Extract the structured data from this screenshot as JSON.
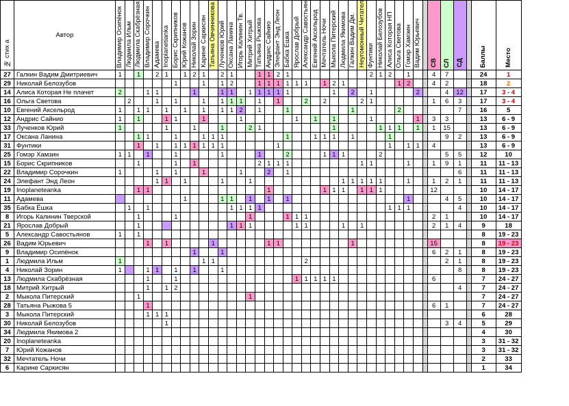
{
  "header": {
    "num": "№ стих а",
    "author": "Автор",
    "voters": [
      "Владимир Осипёнок",
      "Людмила Ильм",
      "Людмила Скабрёзная",
      "Владимир Сорочкин",
      "Адамева",
      "Inoplanetianka",
      "Борис Скрипников",
      "Юрий Кожанов",
      "Николай Зорин",
      "Карине Саркисян",
      "Татьяна Овчинникова",
      "Лученков Юрий",
      "Оксана Ланина",
      "Игорь Калинин Тв.",
      "Митрий Хитрый",
      "Татьяна Рыжова",
      "Андрис Сайнио",
      "Элефант Энд Леон",
      "Бабка Ёшка",
      "Ярослав Добрый",
      "Александр Савостьянов",
      "Евгений Аксельрод",
      "Мечтатель Ночи",
      "Мыкола Питерский",
      "Людмила Якимова",
      "Галкин Вадим Дм.",
      "Неугомонный Читатель",
      "Фунтики",
      "Николай Белозубов",
      "Алиса Которая НП",
      "Ольга Светова",
      "Гомэр Хамэин",
      "Вадим Юрьевич"
    ],
    "sv": "СВ",
    "sl": "СЛ",
    "sd": "СД",
    "total": "Баллы",
    "place": "Место"
  },
  "rows": [
    {
      "num": "27",
      "name": "Галкин Вадим Дмитриевич",
      "sv": "4",
      "sl": "7",
      "sd": "",
      "total": "24",
      "place": "1"
    },
    {
      "num": "29",
      "name": "Николай Белозубов",
      "sv": "4",
      "sl": "2",
      "sd": "",
      "total": "18",
      "place": "2"
    },
    {
      "num": "14",
      "name": "Алиса Которая Не плачет",
      "sv": "",
      "sl": "4",
      "sd": "12",
      "total": "17",
      "place": "3 - 4"
    },
    {
      "num": "16",
      "name": "Ольга Светова",
      "sv": "1",
      "sl": "6",
      "sd": "3",
      "total": "17",
      "place": "3 - 4"
    },
    {
      "num": "10",
      "name": "Евгений Аксельрод",
      "sv": "",
      "sl": "",
      "sd": "7",
      "total": "16",
      "place": "5"
    },
    {
      "num": "12",
      "name": "Андрис Сайнио",
      "sv": "3",
      "sl": "3",
      "sd": "",
      "total": "13",
      "place": "6 - 9"
    },
    {
      "num": "33",
      "name": "Лученков Юрий",
      "sv": "1",
      "sl": "15",
      "sd": "",
      "total": "13",
      "place": "6 - 9"
    },
    {
      "num": "17",
      "name": "Оксана Ланина",
      "sv": "",
      "sl": "9",
      "sd": "2",
      "total": "13",
      "place": "6 - 9"
    },
    {
      "num": "31",
      "name": "Фунтики",
      "sv": "4",
      "sl": "",
      "sd": "",
      "total": "13",
      "place": "6 - 9"
    },
    {
      "num": "25",
      "name": "Гомэр Хамзин",
      "sv": "",
      "sl": "5",
      "sd": "5",
      "total": "12",
      "place": "10"
    },
    {
      "num": "15",
      "name": "Борис Скрипников",
      "sv": "1",
      "sl": "9",
      "sd": "1",
      "total": "11",
      "place": "11 - 13"
    },
    {
      "num": "22",
      "name": "Владимир Сорочкин",
      "sv": "",
      "sl": "",
      "sd": "6",
      "total": "11",
      "place": "11 - 13"
    },
    {
      "num": "24",
      "name": "Элефант Энд Леон",
      "sv": "1",
      "sl": "2",
      "sd": "1",
      "total": "11",
      "place": "11 - 13"
    },
    {
      "num": "19",
      "name": "Inoplaneteanka",
      "sv": "12",
      "sl": "",
      "sd": "",
      "total": "10",
      "place": "14 - 17"
    },
    {
      "num": "11",
      "name": "Адамева",
      "sv": "",
      "sl": "4",
      "sd": "5",
      "total": "10",
      "place": "14 - 17"
    },
    {
      "num": "35",
      "name": "Бабка Ёшка",
      "sv": "",
      "sl": "",
      "sd": "4",
      "total": "10",
      "place": "14 - 17"
    },
    {
      "num": "8",
      "name": "Игорь Калинин Тверской",
      "sv": "2",
      "sl": "1",
      "sd": "",
      "total": "10",
      "place": "14 - 17"
    },
    {
      "num": "21",
      "name": "Ярослав Добрый",
      "sv": "2",
      "sl": "1",
      "sd": "4",
      "total": "9",
      "place": "18"
    },
    {
      "num": "5",
      "name": "Александр Савостьянов",
      "sv": "",
      "sl": "",
      "sd": "",
      "total": "8",
      "place": "19 - 23"
    },
    {
      "num": "26",
      "name": "Вадим Юрьевич",
      "sv": "15",
      "sl": "",
      "sd": "",
      "total": "8",
      "place": "19 - 23"
    },
    {
      "num": "9",
      "name": "Владимир Осипёнок",
      "sv": "6",
      "sl": "2",
      "sd": "1",
      "total": "8",
      "place": "19 - 23"
    },
    {
      "num": "1",
      "name": "Людмила Ильм",
      "sv": "",
      "sl": "2",
      "sd": "1",
      "total": "8",
      "place": "19 - 23"
    },
    {
      "num": "4",
      "name": "Николай Зорин",
      "sv": "",
      "sl": "",
      "sd": "8",
      "total": "8",
      "place": "19 - 23"
    },
    {
      "num": "13",
      "name": "Людмила Скабрёзная",
      "sv": "6",
      "sl": "",
      "sd": "",
      "total": "7",
      "place": "24 - 27"
    },
    {
      "num": "18",
      "name": "Митрий Хитрый",
      "sv": "",
      "sl": "",
      "sd": "4",
      "total": "7",
      "place": "24 - 27"
    },
    {
      "num": "2",
      "name": "Мыкола Питерский",
      "sv": "",
      "sl": "",
      "sd": "",
      "total": "7",
      "place": "24 - 27"
    },
    {
      "num": "28",
      "name": "Татьяна Рыжова 5",
      "sv": "6",
      "sl": "1",
      "sd": "",
      "total": "7",
      "place": "24 - 27"
    },
    {
      "num": "3",
      "name": "Мыкола Питерский",
      "sv": "",
      "sl": "",
      "sd": "",
      "total": "6",
      "place": "28"
    },
    {
      "num": "30",
      "name": "Николай Белозубов",
      "sv": "",
      "sl": "3",
      "sd": "4",
      "total": "5",
      "place": "29"
    },
    {
      "num": "34",
      "name": "Людмила Якимова 2",
      "sv": "",
      "sl": "",
      "sd": "",
      "total": "4",
      "place": "30"
    },
    {
      "num": "20",
      "name": "Inoplaneteanka",
      "sv": "",
      "sl": "",
      "sd": "",
      "total": "3",
      "place": "31 - 32"
    },
    {
      "num": "7",
      "name": "Юрий Кожанов",
      "sv": "",
      "sl": "",
      "sd": "",
      "total": "3",
      "place": "31 - 32"
    },
    {
      "num": "32",
      "name": "Мечтатель Ночи",
      "sv": "",
      "sl": "",
      "sd": "",
      "total": "2",
      "place": "33"
    },
    {
      "num": "6",
      "name": "Карине Саркисян",
      "sv": "",
      "sl": "",
      "sd": "",
      "total": "1",
      "place": "34"
    }
  ],
  "cells": [
    [
      "1",
      "",
      "g1",
      "",
      "2",
      "1",
      "",
      "1",
      "2",
      "1",
      "",
      "2",
      "1",
      "",
      "",
      "p1",
      "p1",
      "2",
      "1",
      "",
      "",
      "",
      "",
      "",
      "",
      "",
      "",
      "2",
      "1",
      "2",
      "",
      "1",
      ""
    ],
    [
      "",
      "",
      "",
      "",
      "",
      "",
      "1",
      "",
      "",
      "1",
      "",
      "1",
      "2",
      "",
      "",
      "p1",
      "p1",
      "p1",
      "1",
      "1",
      "1",
      "",
      "p1",
      "2",
      "1",
      "",
      "",
      "",
      "",
      "",
      "p1",
      "p2",
      ""
    ],
    [
      "g2",
      "",
      "",
      "1",
      "1",
      "",
      "",
      "",
      "v1",
      "",
      "",
      "v1",
      "v1",
      "",
      "1",
      "v1",
      "v1",
      "v1",
      "1",
      "",
      "",
      "",
      "",
      "1",
      "",
      "v2",
      "",
      "1",
      "",
      "",
      "",
      "",
      "v2"
    ],
    [
      "",
      "2",
      "",
      "",
      "1",
      "",
      "1",
      "",
      "",
      "1",
      "",
      "1",
      "g1",
      "g1",
      "",
      "1",
      "",
      "p1",
      "",
      "",
      "g2",
      "",
      "2",
      "",
      "",
      "",
      "2",
      "1",
      "",
      "",
      "",
      "",
      ""
    ],
    [
      "1",
      "",
      "1",
      "1",
      "",
      "1",
      "",
      "1",
      "",
      "1",
      "",
      "1",
      "1",
      "v2",
      "",
      "1",
      "",
      "",
      "g1",
      "",
      "",
      "",
      "",
      "",
      "",
      "g1",
      "",
      "",
      "",
      "",
      "g2",
      "",
      ""
    ],
    [
      "1",
      "",
      "g1",
      "",
      "",
      "p1",
      "1",
      "",
      "",
      "p1",
      "",
      "",
      "",
      "1",
      "",
      "",
      "",
      "",
      "",
      "1",
      "",
      "g1",
      "",
      "g1",
      "",
      "",
      "",
      "1",
      "",
      "",
      "",
      "",
      "p1"
    ],
    [
      "g1",
      "",
      "",
      "",
      "",
      "1",
      "",
      "",
      "1",
      "",
      "",
      "g1",
      "",
      "",
      "g2",
      "1",
      "",
      "",
      "",
      "",
      "",
      "",
      "",
      "g1",
      "",
      "",
      "",
      "",
      "g1",
      "1",
      "g1",
      "",
      "g1"
    ],
    [
      "",
      "",
      "g1",
      "1",
      "",
      "",
      "1",
      "",
      "",
      "1",
      "1",
      "1",
      "",
      "",
      "",
      "",
      "",
      "",
      "g1",
      "",
      "",
      "1",
      "1",
      "1",
      "",
      "1",
      "",
      "",
      "",
      "g1",
      "",
      "",
      ""
    ],
    [
      "",
      "",
      "p1",
      "",
      "1",
      "",
      "1",
      "1",
      "p1",
      "1",
      "1",
      "1",
      "",
      "",
      "",
      "",
      "",
      "1",
      "",
      "",
      "",
      "",
      "",
      "",
      "",
      "",
      "",
      "",
      "",
      "1",
      "",
      "1",
      "1"
    ],
    [
      "1",
      "1",
      "",
      "v1",
      "",
      "",
      "1",
      "",
      "",
      "",
      "",
      "1",
      "",
      "",
      "",
      "v1",
      "",
      "",
      "g2",
      "",
      "",
      "",
      "1",
      "v1",
      "1",
      "",
      "",
      "",
      "2",
      "",
      "",
      "",
      ""
    ],
    [
      "",
      "",
      "1",
      "",
      "",
      "",
      "1",
      "",
      "p1",
      "",
      "",
      "",
      "",
      "",
      "",
      "2",
      "1",
      "1",
      "1",
      "",
      "",
      "",
      "",
      "",
      "",
      "",
      "1",
      "1",
      "",
      "",
      "",
      "1",
      ""
    ],
    [
      "1",
      "",
      "",
      "",
      "1",
      "",
      "1",
      "",
      "",
      "p1",
      "",
      "",
      "",
      "1",
      "",
      "",
      "v2",
      "",
      "1",
      "",
      "",
      "",
      "",
      "",
      "",
      "",
      "",
      "",
      "",
      "",
      "",
      "",
      ""
    ],
    [
      "",
      "",
      "",
      "",
      "1",
      "p1",
      "",
      "1",
      "",
      "",
      "",
      "1",
      "",
      "",
      "1",
      "",
      "",
      "",
      "",
      "",
      "",
      "",
      "",
      "",
      "1",
      "1",
      "1",
      "1",
      "1",
      "",
      "",
      "1",
      ""
    ],
    [
      "",
      "",
      "p1",
      "p1",
      "",
      "",
      "",
      "",
      "",
      "",
      "",
      "",
      "",
      "",
      "",
      "",
      "p1",
      "",
      "",
      "",
      "",
      "",
      "p1",
      "1",
      "1",
      "",
      "p1",
      "p1",
      "1",
      "",
      "",
      "",
      ""
    ],
    [
      "v",
      "",
      "",
      "",
      "",
      "",
      "",
      "1",
      "",
      "",
      "",
      "g1",
      "g1",
      "",
      "v1",
      "",
      "v1",
      "",
      "v1",
      "",
      "",
      "",
      "",
      "",
      "",
      "",
      "",
      "",
      "",
      "",
      "",
      "v1",
      ""
    ],
    [
      "",
      "1",
      "",
      "1",
      "",
      "",
      "",
      "",
      "",
      "",
      "",
      "",
      "1",
      "1",
      "1",
      "v1",
      "",
      "",
      "",
      "",
      "",
      "",
      "",
      "",
      "",
      "",
      "",
      "",
      "",
      "1",
      "1",
      "1",
      ""
    ],
    [
      "",
      "",
      "1",
      "",
      "",
      "",
      "1",
      "",
      "",
      "",
      "",
      "",
      "",
      "",
      "p1",
      "",
      "",
      "",
      "p1",
      "1",
      "1",
      "",
      "",
      "",
      "",
      "",
      "",
      "",
      "",
      "",
      "",
      "",
      ""
    ],
    [
      "",
      "",
      "1",
      "",
      "",
      "v",
      "",
      "",
      "",
      "",
      "",
      "",
      "v1",
      "p1",
      "1",
      "",
      "",
      "",
      "",
      "1",
      "1",
      "",
      "",
      "",
      "1",
      "",
      "1",
      "",
      "",
      "",
      "",
      "",
      ""
    ],
    [
      "1",
      "",
      "1",
      "",
      "",
      "",
      "",
      "",
      "",
      "",
      "",
      "",
      "",
      "",
      "",
      "",
      "",
      "",
      "",
      "",
      "",
      "",
      "",
      "",
      "",
      "",
      "",
      "",
      "",
      "",
      "",
      "",
      ""
    ],
    [
      "",
      "",
      "",
      "p1",
      "",
      "p1",
      "",
      "",
      "",
      "",
      "v1",
      "",
      "",
      "",
      "",
      "",
      "p1",
      "p1",
      "",
      "",
      "",
      "",
      "",
      "",
      "",
      "p1",
      "",
      "",
      "",
      "",
      "",
      "",
      ""
    ],
    [
      "",
      "",
      "",
      "",
      "",
      "",
      "",
      "",
      "v1",
      "",
      "",
      "v1",
      "",
      "",
      "",
      "",
      "",
      "",
      "",
      "",
      "",
      "",
      "",
      "",
      "",
      "",
      "",
      "",
      "",
      "",
      "",
      "",
      ""
    ],
    [
      "g1",
      "",
      "",
      "",
      "",
      "",
      "",
      "",
      "",
      "1",
      "1",
      "",
      "",
      "",
      "",
      "",
      "",
      "",
      "",
      "",
      "2",
      "",
      "",
      "",
      "",
      "",
      "",
      "",
      "",
      "",
      "",
      "",
      ""
    ],
    [
      "1",
      "v",
      "",
      "1",
      "v1",
      "",
      "1",
      "",
      "v1",
      "",
      "",
      "1",
      "",
      "",
      "",
      "",
      "",
      "",
      "",
      "",
      "",
      "",
      "",
      "",
      "",
      "",
      "",
      "",
      "",
      "",
      "",
      "",
      ""
    ],
    [
      "",
      "",
      "",
      "1",
      "",
      "",
      "1",
      "",
      "",
      "",
      "",
      "",
      "",
      "",
      "",
      "",
      "",
      "",
      "",
      "p1",
      "1",
      "1",
      "1",
      "1",
      "",
      "",
      "",
      "",
      "",
      "",
      "",
      "",
      ""
    ],
    [
      "",
      "",
      "",
      "1",
      "",
      "1",
      "2",
      "",
      "",
      "",
      "",
      "",
      "",
      "",
      "",
      "",
      "",
      "",
      "",
      "",
      "",
      "",
      "",
      "",
      "",
      "",
      "",
      "",
      "",
      "",
      "",
      "",
      ""
    ],
    [
      "",
      "",
      "1",
      "",
      "",
      "",
      "",
      "",
      "",
      "",
      "",
      "",
      "",
      "",
      "p1",
      "",
      "",
      "",
      "",
      "",
      "",
      "",
      "",
      "",
      "",
      "",
      "",
      "",
      "",
      "",
      "",
      "",
      ""
    ],
    [
      "",
      "",
      "",
      "p1",
      "",
      "",
      "",
      "",
      "",
      "",
      "",
      "",
      "",
      "",
      "",
      "",
      "",
      "",
      "",
      "",
      "",
      "",
      "",
      "",
      "",
      "",
      "",
      "",
      "",
      "",
      "",
      "",
      ""
    ],
    [
      "",
      "",
      "",
      "1",
      "1",
      "1",
      "",
      "",
      "",
      "",
      "",
      "",
      "",
      "",
      "",
      "",
      "",
      "",
      "",
      "",
      "",
      "",
      "",
      "",
      "",
      "",
      "",
      "",
      "",
      "",
      "",
      "",
      ""
    ],
    [
      "",
      "",
      "",
      "",
      "",
      "1",
      "",
      "",
      "",
      "",
      "",
      "",
      "",
      "",
      "",
      "",
      "",
      "",
      "",
      "",
      "",
      "",
      "",
      "",
      "",
      "",
      "",
      "",
      "",
      "",
      "",
      "",
      ""
    ],
    [
      "",
      "",
      "",
      "",
      "",
      "",
      "",
      "",
      "",
      "",
      "",
      "",
      "",
      "",
      "",
      "",
      "",
      "",
      "",
      "",
      "",
      "",
      "",
      "",
      "",
      "",
      "",
      "",
      "",
      "",
      "",
      "",
      ""
    ],
    [
      "",
      "",
      "",
      "",
      "",
      "",
      "",
      "",
      "",
      "",
      "",
      "",
      "",
      "",
      "",
      "",
      "",
      "",
      "",
      "",
      "",
      "",
      "",
      "",
      "",
      "",
      "",
      "",
      "",
      "",
      "",
      "",
      ""
    ],
    [
      "",
      "",
      "",
      "",
      "",
      "",
      "",
      "",
      "",
      "",
      "",
      "",
      "",
      "",
      "",
      "",
      "",
      "",
      "",
      "",
      "",
      "",
      "",
      "",
      "",
      "",
      "",
      "",
      "",
      "",
      "",
      "",
      ""
    ],
    [
      "",
      "",
      "",
      "",
      "",
      "",
      "",
      "",
      "",
      "",
      "",
      "",
      "",
      "",
      "",
      "",
      "",
      "",
      "",
      "",
      "",
      "",
      "",
      "",
      "",
      "",
      "",
      "",
      "",
      "",
      "",
      "",
      ""
    ],
    [
      "",
      "",
      "",
      "",
      "",
      "",
      "",
      "",
      "",
      "",
      "",
      "",
      "",
      "",
      "",
      "",
      "",
      "",
      "",
      "",
      "",
      "",
      "",
      "",
      "",
      "",
      "",
      "",
      "",
      "",
      "",
      "",
      ""
    ]
  ],
  "colors": {
    "sv": "#ff99cc",
    "sl": "#ccffcc",
    "sd": "#cc99ff",
    "highlight": "#ffff99",
    "separator": "#d8d8d8",
    "place_top": "#cc0000",
    "place_second": "#ff6600"
  }
}
